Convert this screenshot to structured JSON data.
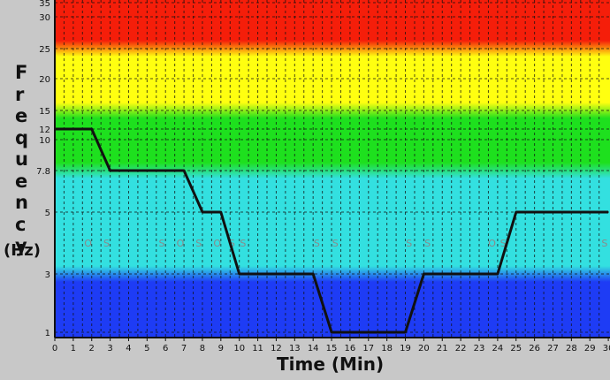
{
  "chart_data": {
    "type": "line",
    "title": "",
    "xlabel": "Time (Min)",
    "ylabel": "Frequency",
    "ylabel_unit": "(Hz)",
    "x_ticks": [
      0,
      1,
      2,
      3,
      4,
      5,
      6,
      7,
      8,
      9,
      10,
      11,
      12,
      13,
      14,
      15,
      16,
      17,
      18,
      19,
      20,
      21,
      22,
      23,
      24,
      25,
      26,
      27,
      28,
      29,
      30
    ],
    "y_ticks": [
      1,
      3,
      5,
      7.8,
      10,
      12,
      15,
      20,
      25,
      30,
      35
    ],
    "xlim": [
      0,
      30
    ],
    "grid": "dashed",
    "bands": [
      {
        "range": [
          1,
          3
        ],
        "color": "#1e3cf5"
      },
      {
        "range": [
          3,
          7.8
        ],
        "color": "#33e0e0"
      },
      {
        "range": [
          7.8,
          15
        ],
        "color": "#1ee01e"
      },
      {
        "range": [
          15,
          25
        ],
        "color": "#ffff10"
      },
      {
        "range": [
          25,
          35
        ],
        "color": "#f51e0a"
      }
    ],
    "series": [
      {
        "color": "#111111",
        "points": [
          [
            0,
            12
          ],
          [
            2,
            12
          ],
          [
            3,
            7.8
          ],
          [
            7,
            7.8
          ],
          [
            8,
            5
          ],
          [
            9,
            5
          ],
          [
            10,
            3
          ],
          [
            14,
            3
          ],
          [
            15,
            1
          ],
          [
            19,
            1
          ],
          [
            20,
            3
          ],
          [
            24,
            3
          ],
          [
            25,
            5
          ],
          [
            30,
            5
          ]
        ]
      }
    ],
    "markers": [
      {
        "x": 1.8,
        "text": "O"
      },
      {
        "x": 2.8,
        "text": "S"
      },
      {
        "x": 5.8,
        "text": "S"
      },
      {
        "x": 6.8,
        "text": "O"
      },
      {
        "x": 7.8,
        "text": "S"
      },
      {
        "x": 8.8,
        "text": "O"
      },
      {
        "x": 9.6,
        "text": "S"
      },
      {
        "x": 10.2,
        "text": "S"
      },
      {
        "x": 14.2,
        "text": "S"
      },
      {
        "x": 15.2,
        "text": "S"
      },
      {
        "x": 19.2,
        "text": "S"
      },
      {
        "x": 20.2,
        "text": "S"
      },
      {
        "x": 23.7,
        "text": "O"
      },
      {
        "x": 24.3,
        "text": "S"
      },
      {
        "x": 29.8,
        "text": "S"
      }
    ]
  }
}
